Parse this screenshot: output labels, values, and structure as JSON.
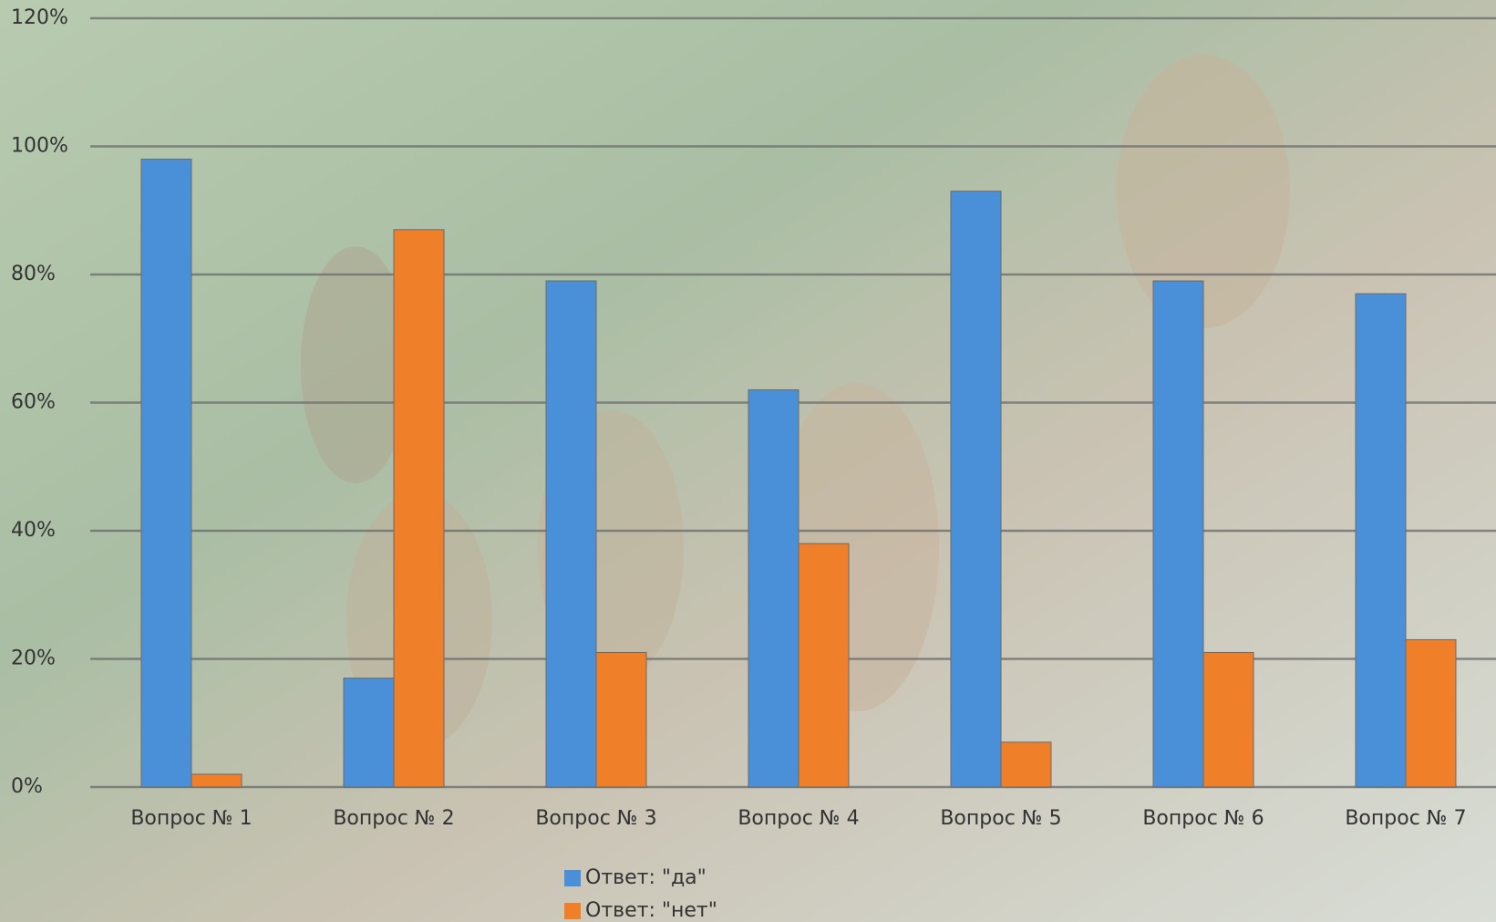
{
  "chart_data": {
    "type": "bar",
    "categories": [
      "Вопрос № 1",
      "Вопрос № 2",
      "Вопрос № 3",
      "Вопрос № 4",
      "Вопрос № 5",
      "Вопрос № 6",
      "Вопрос № 7"
    ],
    "series": [
      {
        "name": "Ответ: \"да\"",
        "color": "#4a90d9",
        "values": [
          98,
          17,
          79,
          62,
          93,
          79,
          77
        ]
      },
      {
        "name": "Ответ: \"нет\"",
        "color": "#f07f2a",
        "values": [
          2,
          87,
          21,
          38,
          7,
          21,
          23
        ]
      }
    ],
    "ylim": [
      0,
      120
    ],
    "yticks": [
      {
        "value": 0,
        "label": "0%"
      },
      {
        "value": 20,
        "label": "20%"
      },
      {
        "value": 40,
        "label": "40%"
      },
      {
        "value": 60,
        "label": "60%"
      },
      {
        "value": 80,
        "label": "80%"
      },
      {
        "value": 100,
        "label": "100%"
      },
      {
        "value": 120,
        "label": "120%"
      }
    ],
    "grid": true,
    "legend": "bottom"
  }
}
